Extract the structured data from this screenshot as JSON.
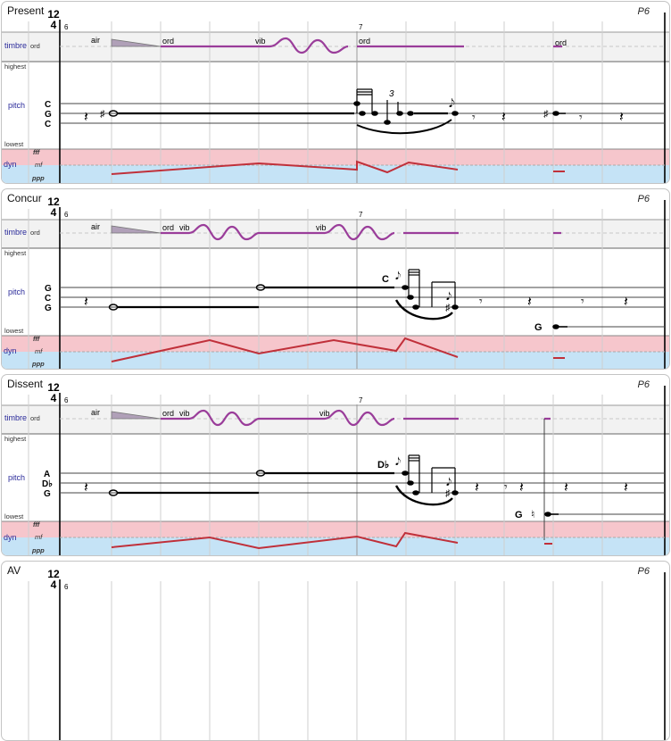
{
  "meter": {
    "numerator": "12",
    "denominator": "4"
  },
  "measures": {
    "first": "6",
    "second": "7"
  },
  "lane_labels": {
    "timbre": "timbre",
    "ord": "ord",
    "highest": "highest",
    "lowest": "lowest",
    "pitch": "pitch",
    "dyn": "dyn",
    "fff": "fff",
    "mf": "mf",
    "ppp": "ppp"
  },
  "colors": {
    "timbre_line": "#9a3d9a",
    "dyn_line": "#c0303a",
    "lane_label": "#2a2a9a"
  },
  "icons": {
    "quarter_rest": "quarter-rest-icon",
    "eighth_rest": "eighth-rest-icon",
    "whole_note": "whole-note-icon"
  },
  "panels": [
    {
      "title": "Present",
      "part": "P6",
      "timbre_words": [
        "air",
        "ord",
        "vib",
        "ord",
        "ord"
      ],
      "pitch_names": [
        "C",
        "G",
        "C"
      ],
      "tuplet": "3"
    },
    {
      "title": "Concur",
      "part": "P6",
      "timbre_words": [
        "air",
        "ord",
        "vib",
        "vib"
      ],
      "pitch_names": [
        "G",
        "C",
        "G"
      ],
      "grace_pitch": "C",
      "low_pitch": "G"
    },
    {
      "title": "Dissent",
      "part": "P6",
      "timbre_words": [
        "air",
        "ord",
        "vib",
        "vib"
      ],
      "pitch_names": [
        "A",
        "D♭",
        "G"
      ],
      "grace_pitch": "D♭",
      "low_pitch": "G"
    },
    {
      "title": "AV",
      "part": "P6"
    }
  ]
}
